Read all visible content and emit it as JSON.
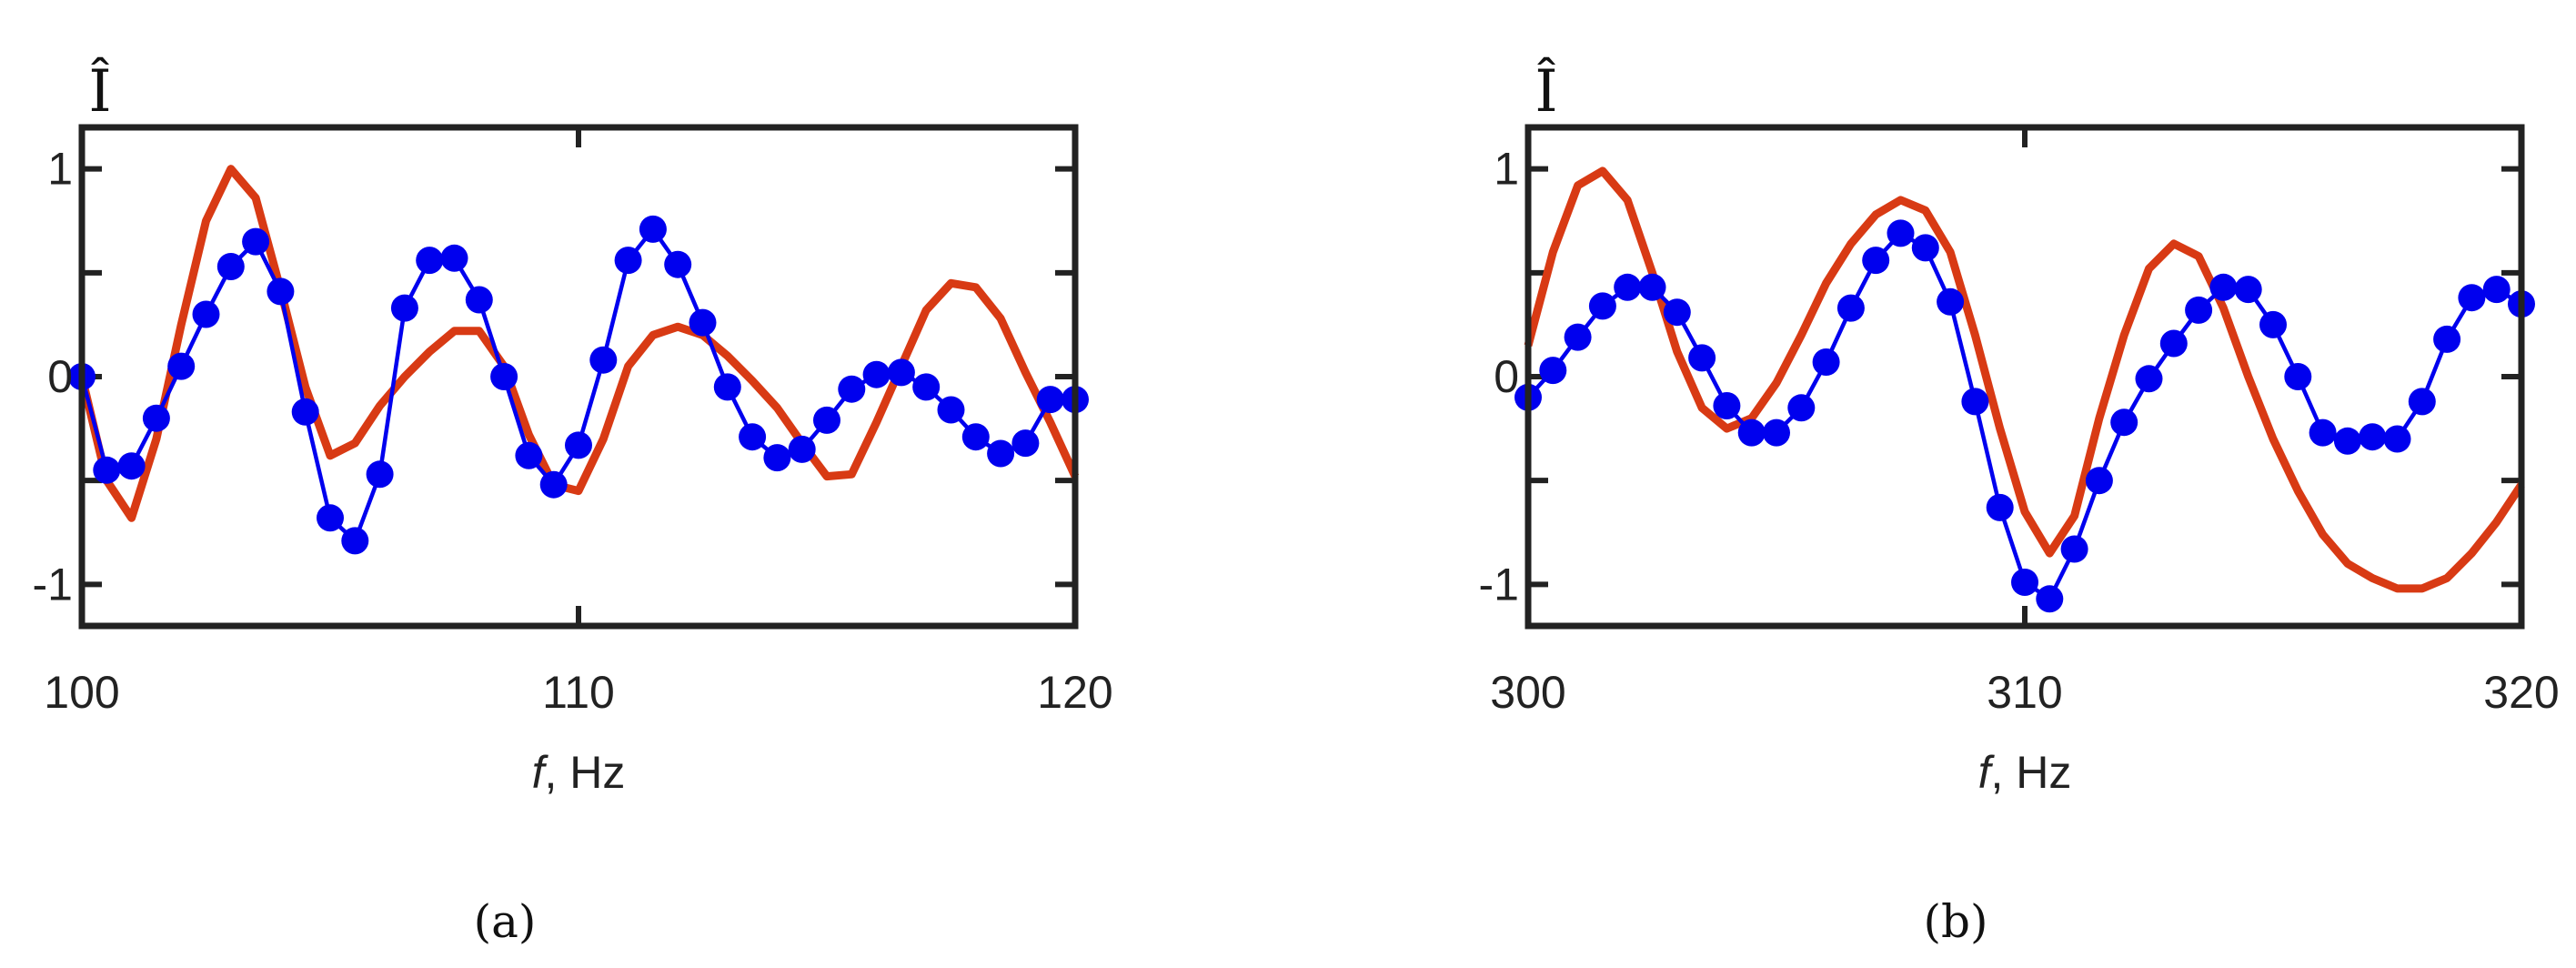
{
  "chart_data": [
    {
      "type": "line",
      "caption": "(a)",
      "ylabel": "Î",
      "xlabel_var": "f",
      "xlabel_unit": ", Hz",
      "xlim": [
        100,
        120
      ],
      "ylim": [
        -1.2,
        1.2
      ],
      "xticks": [
        100,
        110,
        120
      ],
      "xtick_labels": [
        "100",
        "110",
        "120"
      ],
      "yticks": [
        -1,
        0,
        1
      ],
      "ytick_labels": [
        "-1",
        "0",
        "1"
      ],
      "minor_yticks": [
        -0.5,
        0.5
      ],
      "colors": {
        "model": "#d83a14",
        "measured": "#0000ee"
      },
      "series": [
        {
          "style": "line",
          "x": [
            100,
            100.5,
            101,
            101.5,
            102,
            102.5,
            103,
            103.5,
            104,
            104.5,
            105,
            105.5,
            106,
            106.5,
            107,
            107.5,
            108,
            108.5,
            109,
            109.5,
            110,
            110.5,
            111,
            111.5,
            112,
            112.5,
            113,
            113.5,
            114,
            114.5,
            115,
            115.5,
            116,
            116.5,
            117,
            117.5,
            118,
            118.5,
            119,
            119.5,
            120
          ],
          "y": [
            0,
            -0.5,
            -0.68,
            -0.3,
            0.25,
            0.75,
            1.0,
            0.86,
            0.42,
            -0.05,
            -0.38,
            -0.32,
            -0.14,
            0.0,
            0.12,
            0.22,
            0.22,
            0.05,
            -0.28,
            -0.52,
            -0.55,
            -0.3,
            0.05,
            0.2,
            0.24,
            0.2,
            0.1,
            -0.02,
            -0.15,
            -0.32,
            -0.48,
            -0.47,
            -0.22,
            0.05,
            0.32,
            0.45,
            0.43,
            0.28,
            0.02,
            -0.22,
            -0.48
          ]
        },
        {
          "style": "markers",
          "x": [
            100,
            100.5,
            101,
            101.5,
            102,
            102.5,
            103,
            103.5,
            104,
            104.5,
            105,
            105.5,
            106,
            106.5,
            107,
            107.5,
            108,
            108.5,
            109,
            109.5,
            110,
            110.5,
            111,
            111.5,
            112,
            112.5,
            113,
            113.5,
            114,
            114.5,
            115,
            115.5,
            116,
            116.5,
            117,
            117.5,
            118,
            118.5,
            119,
            119.5,
            120
          ],
          "y": [
            0.0,
            -0.45,
            -0.43,
            -0.2,
            0.05,
            0.3,
            0.53,
            0.65,
            0.41,
            -0.17,
            -0.68,
            -0.79,
            -0.47,
            0.33,
            0.56,
            0.57,
            0.37,
            0.0,
            -0.38,
            -0.52,
            -0.33,
            0.08,
            0.56,
            0.71,
            0.54,
            0.26,
            -0.05,
            -0.29,
            -0.39,
            -0.35,
            -0.21,
            -0.06,
            0.01,
            0.02,
            -0.05,
            -0.16,
            -0.29,
            -0.37,
            -0.32,
            -0.11,
            -0.11
          ]
        }
      ]
    },
    {
      "type": "line",
      "caption": "(b)",
      "ylabel": "Î",
      "xlabel_var": "f",
      "xlabel_unit": ", Hz",
      "xlim": [
        300,
        320
      ],
      "ylim": [
        -1.2,
        1.2
      ],
      "xticks": [
        300,
        310,
        320
      ],
      "xtick_labels": [
        "300",
        "310",
        "320"
      ],
      "yticks": [
        -1,
        0,
        1
      ],
      "ytick_labels": [
        "-1",
        "0",
        "1"
      ],
      "minor_yticks": [
        -0.5,
        0.5
      ],
      "colors": {
        "model": "#d83a14",
        "measured": "#0000ee"
      },
      "series": [
        {
          "style": "line",
          "x": [
            300,
            300.5,
            301,
            301.5,
            302,
            302.5,
            303,
            303.5,
            304,
            304.5,
            305,
            305.5,
            306,
            306.5,
            307,
            307.5,
            308,
            308.5,
            309,
            309.5,
            310,
            310.5,
            311,
            311.5,
            312,
            312.5,
            313,
            313.5,
            314,
            314.5,
            315,
            315.5,
            316,
            316.5,
            317,
            317.5,
            318,
            318.5,
            319,
            319.5,
            320
          ],
          "y": [
            0.15,
            0.6,
            0.92,
            0.99,
            0.85,
            0.5,
            0.12,
            -0.15,
            -0.25,
            -0.2,
            -0.03,
            0.2,
            0.45,
            0.64,
            0.78,
            0.85,
            0.8,
            0.6,
            0.2,
            -0.25,
            -0.65,
            -0.85,
            -0.67,
            -0.2,
            0.2,
            0.52,
            0.64,
            0.58,
            0.33,
            0.0,
            -0.3,
            -0.55,
            -0.76,
            -0.9,
            -0.97,
            -1.02,
            -1.02,
            -0.97,
            -0.85,
            -0.7,
            -0.52
          ]
        },
        {
          "style": "markers",
          "x": [
            300,
            300.5,
            301,
            301.5,
            302,
            302.5,
            303,
            303.5,
            304,
            304.5,
            305,
            305.5,
            306,
            306.5,
            307,
            307.5,
            308,
            308.5,
            309,
            309.5,
            310,
            310.5,
            311,
            311.5,
            312,
            312.5,
            313,
            313.5,
            314,
            314.5,
            315,
            315.5,
            316,
            316.5,
            317,
            317.5,
            318,
            318.5,
            319,
            319.5,
            320
          ],
          "y": [
            -0.1,
            0.03,
            0.19,
            0.34,
            0.43,
            0.43,
            0.31,
            0.09,
            -0.14,
            -0.27,
            -0.27,
            -0.15,
            0.07,
            0.33,
            0.56,
            0.69,
            0.62,
            0.36,
            -0.12,
            -0.63,
            -0.99,
            -1.07,
            -0.83,
            -0.5,
            -0.22,
            -0.01,
            0.16,
            0.32,
            0.43,
            0.42,
            0.25,
            0.0,
            -0.27,
            -0.31,
            -0.29,
            -0.3,
            -0.12,
            0.18,
            0.38,
            0.42,
            0.35
          ]
        }
      ]
    }
  ]
}
